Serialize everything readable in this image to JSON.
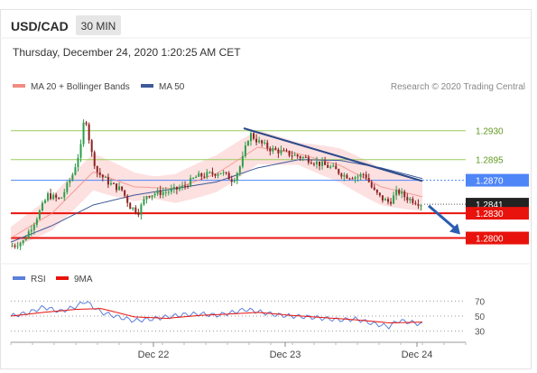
{
  "header": {
    "pair": "USD/CAD",
    "timeframe": "30 MIN",
    "datetime": "Thursday, December 24, 2020 1:20:25 AM CET"
  },
  "legend": {
    "ma20": "MA 20 + Bollinger Bands",
    "ma50": "MA 50",
    "source": "Research © 2020 Trading Central"
  },
  "rsi_legend": {
    "rsi": "RSI",
    "ma9": "9MA"
  },
  "colors": {
    "resistance": "#9acd5a",
    "pivot": "#4f86f7",
    "support": "#e8130c",
    "current": "#222222",
    "candle_up": "#2e9e4a",
    "candle_down": "#8b2323",
    "trendline": "#2c4a8a",
    "bollinger_fill": "#fcd8d8",
    "ma20": "#f28b82",
    "ma50": "#3d5a99",
    "rsi": "#5b7fdc",
    "rsi_ma9": "#e8130c"
  },
  "chart_data": {
    "type": "candlestick",
    "title": "USD/CAD",
    "timeframe": "30 MIN",
    "x_labels": [
      "Dec 22",
      "Dec 23",
      "Dec 24"
    ],
    "ylim": [
      1.2782,
      1.2968
    ],
    "levels": [
      {
        "price": 1.293,
        "label": "1.2930",
        "kind": "resistance"
      },
      {
        "price": 1.2895,
        "label": "1.2895",
        "kind": "resistance"
      },
      {
        "price": 1.287,
        "label": "1.2870",
        "kind": "pivot"
      },
      {
        "price": 1.2841,
        "label": "1.2841",
        "kind": "current"
      },
      {
        "price": 1.283,
        "label": "1.2830",
        "kind": "support"
      },
      {
        "price": 1.28,
        "label": "1.2800",
        "kind": "support"
      }
    ],
    "trendline": {
      "from": [
        0,
        1.2933
      ],
      "to": [
        1,
        1.2869
      ]
    },
    "forecast": {
      "direction": "down",
      "target": 1.28
    },
    "close_path": [
      [
        0,
        1.279
      ],
      [
        0.03,
        1.2796
      ],
      [
        0.06,
        1.2822
      ],
      [
        0.09,
        1.2852
      ],
      [
        0.12,
        1.2846
      ],
      [
        0.15,
        1.2877
      ],
      [
        0.17,
        1.291
      ],
      [
        0.18,
        1.2952
      ],
      [
        0.195,
        1.2905
      ],
      [
        0.21,
        1.288
      ],
      [
        0.24,
        1.2866
      ],
      [
        0.27,
        1.2858
      ],
      [
        0.29,
        1.2838
      ],
      [
        0.31,
        1.2832
      ],
      [
        0.33,
        1.2852
      ],
      [
        0.36,
        1.2855
      ],
      [
        0.39,
        1.2857
      ],
      [
        0.42,
        1.2862
      ],
      [
        0.45,
        1.2874
      ],
      [
        0.48,
        1.2877
      ],
      [
        0.51,
        1.288
      ],
      [
        0.54,
        1.287
      ],
      [
        0.56,
        1.289
      ],
      [
        0.58,
        1.2927
      ],
      [
        0.6,
        1.2917
      ],
      [
        0.63,
        1.2908
      ],
      [
        0.66,
        1.2904
      ],
      [
        0.69,
        1.29
      ],
      [
        0.72,
        1.2896
      ],
      [
        0.75,
        1.289
      ],
      [
        0.78,
        1.2885
      ],
      [
        0.81,
        1.2876
      ],
      [
        0.84,
        1.2874
      ],
      [
        0.86,
        1.2878
      ],
      [
        0.88,
        1.2858
      ],
      [
        0.9,
        1.2848
      ],
      [
        0.92,
        1.2843
      ],
      [
        0.94,
        1.2857
      ],
      [
        0.96,
        1.2849
      ],
      [
        0.98,
        1.2845
      ],
      [
        1,
        1.2841
      ]
    ],
    "ma20_path": [
      [
        0,
        1.28
      ],
      [
        0.1,
        1.283
      ],
      [
        0.2,
        1.288
      ],
      [
        0.3,
        1.2862
      ],
      [
        0.4,
        1.286
      ],
      [
        0.5,
        1.2878
      ],
      [
        0.6,
        1.291
      ],
      [
        0.7,
        1.2902
      ],
      [
        0.8,
        1.2888
      ],
      [
        0.9,
        1.2862
      ],
      [
        1,
        1.285
      ]
    ],
    "bollinger_width": 0.0018,
    "ma50_path": [
      [
        0,
        1.2795
      ],
      [
        0.1,
        1.2815
      ],
      [
        0.2,
        1.284
      ],
      [
        0.3,
        1.2852
      ],
      [
        0.4,
        1.286
      ],
      [
        0.5,
        1.2868
      ],
      [
        0.6,
        1.2885
      ],
      [
        0.7,
        1.2895
      ],
      [
        0.8,
        1.2894
      ],
      [
        0.9,
        1.2885
      ],
      [
        1,
        1.2872
      ]
    ],
    "rsi": {
      "ylim": [
        20,
        80
      ],
      "levels": [
        {
          "value": 70,
          "label": "70"
        },
        {
          "value": 50,
          "label": "50"
        },
        {
          "value": 30,
          "label": "30"
        }
      ],
      "rsi_path": [
        [
          0,
          50
        ],
        [
          0.04,
          54
        ],
        [
          0.08,
          62
        ],
        [
          0.12,
          56
        ],
        [
          0.16,
          63
        ],
        [
          0.18,
          70
        ],
        [
          0.22,
          55
        ],
        [
          0.26,
          49
        ],
        [
          0.3,
          44
        ],
        [
          0.34,
          46
        ],
        [
          0.38,
          49
        ],
        [
          0.42,
          52
        ],
        [
          0.46,
          53
        ],
        [
          0.5,
          51
        ],
        [
          0.54,
          55
        ],
        [
          0.57,
          59
        ],
        [
          0.6,
          56
        ],
        [
          0.64,
          52
        ],
        [
          0.68,
          50
        ],
        [
          0.72,
          49
        ],
        [
          0.76,
          47
        ],
        [
          0.8,
          45
        ],
        [
          0.84,
          46
        ],
        [
          0.88,
          40
        ],
        [
          0.92,
          36
        ],
        [
          0.94,
          44
        ],
        [
          0.97,
          42
        ],
        [
          1,
          39
        ]
      ],
      "ma9_path": [
        [
          0,
          50
        ],
        [
          0.08,
          55
        ],
        [
          0.16,
          59
        ],
        [
          0.22,
          60
        ],
        [
          0.3,
          49
        ],
        [
          0.38,
          47
        ],
        [
          0.46,
          51
        ],
        [
          0.54,
          53
        ],
        [
          0.6,
          55
        ],
        [
          0.68,
          51
        ],
        [
          0.76,
          48
        ],
        [
          0.84,
          45
        ],
        [
          0.92,
          41
        ],
        [
          1,
          42
        ]
      ]
    }
  }
}
